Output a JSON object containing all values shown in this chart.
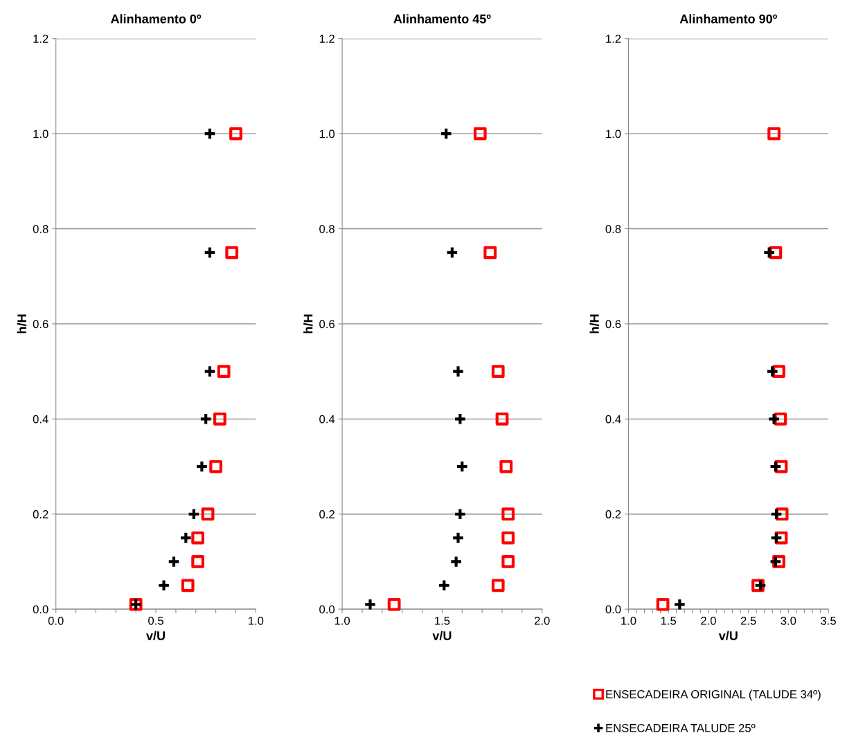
{
  "chart_data": [
    {
      "type": "scatter",
      "title": "Alinhamento 0º",
      "xlabel": "v/U",
      "ylabel": "h/H",
      "xlim": [
        0,
        1
      ],
      "ylim": [
        0,
        1.2
      ],
      "xticks": [
        {
          "value": 0,
          "label": "0.0"
        },
        {
          "value": 0.1,
          "label": null
        },
        {
          "value": 0.2,
          "label": null
        },
        {
          "value": 0.3,
          "label": null
        },
        {
          "value": 0.4,
          "label": null
        },
        {
          "value": 0.5,
          "label": "0.5"
        },
        {
          "value": 0.6,
          "label": null
        },
        {
          "value": 0.7,
          "label": null
        },
        {
          "value": 0.8,
          "label": null
        },
        {
          "value": 0.9,
          "label": null
        },
        {
          "value": 1,
          "label": "1.0"
        }
      ],
      "yticks": [
        {
          "value": 0,
          "label": "0.0"
        },
        {
          "value": 0.2,
          "label": "0.2"
        },
        {
          "value": 0.4,
          "label": "0.4"
        },
        {
          "value": 0.6,
          "label": "0.6"
        },
        {
          "value": 0.8,
          "label": "0.8"
        },
        {
          "value": 1,
          "label": "1.0"
        },
        {
          "value": 1.2,
          "label": "1.2"
        }
      ],
      "grid": "y",
      "legend": "bottom right",
      "series": [
        {
          "name": "ENSECADEIRA ORIGINAL (TALUDE 34º)",
          "color": "#ff0000",
          "marker": "square",
          "x": [
            0.9,
            0.88,
            0.84,
            0.82,
            0.8,
            0.76,
            0.71,
            0.71,
            0.66,
            0.4
          ],
          "values": [
            1.0,
            0.75,
            0.5,
            0.4,
            0.3,
            0.2,
            0.15,
            0.1,
            0.05,
            0.01
          ]
        },
        {
          "name": "ENSECADEIRA TALUDE 25º",
          "color": "#000000",
          "marker": "cross",
          "x": [
            0.77,
            0.77,
            0.77,
            0.75,
            0.73,
            0.69,
            0.65,
            0.59,
            0.54,
            0.4
          ],
          "values": [
            1.0,
            0.75,
            0.5,
            0.4,
            0.3,
            0.2,
            0.15,
            0.1,
            0.05,
            0.01
          ]
        }
      ]
    },
    {
      "type": "scatter",
      "title": "Alinhamento 45º",
      "xlabel": "v/U",
      "ylabel": "h/H",
      "xlim": [
        1,
        2
      ],
      "ylim": [
        0,
        1.2
      ],
      "xticks": [
        {
          "value": 1,
          "label": "1.0"
        },
        {
          "value": 1.1,
          "label": null
        },
        {
          "value": 1.2,
          "label": null
        },
        {
          "value": 1.3,
          "label": null
        },
        {
          "value": 1.4,
          "label": null
        },
        {
          "value": 1.5,
          "label": "1.5"
        },
        {
          "value": 1.6,
          "label": null
        },
        {
          "value": 1.7,
          "label": null
        },
        {
          "value": 1.8,
          "label": null
        },
        {
          "value": 1.9,
          "label": null
        },
        {
          "value": 2,
          "label": "2.0"
        }
      ],
      "yticks": [
        {
          "value": 0,
          "label": "0.0"
        },
        {
          "value": 0.2,
          "label": "0.2"
        },
        {
          "value": 0.4,
          "label": "0.4"
        },
        {
          "value": 0.6,
          "label": "0.6"
        },
        {
          "value": 0.8,
          "label": "0.8"
        },
        {
          "value": 1,
          "label": "1.0"
        },
        {
          "value": 1.2,
          "label": "1.2"
        }
      ],
      "grid": "y",
      "legend": "bottom right",
      "series": [
        {
          "name": "ENSECADEIRA ORIGINAL (TALUDE 34º)",
          "color": "#ff0000",
          "marker": "square",
          "x": [
            1.69,
            1.74,
            1.78,
            1.8,
            1.82,
            1.83,
            1.83,
            1.83,
            1.78,
            1.26
          ],
          "values": [
            1.0,
            0.75,
            0.5,
            0.4,
            0.3,
            0.2,
            0.15,
            0.1,
            0.05,
            0.01
          ]
        },
        {
          "name": "ENSECADEIRA TALUDE 25º",
          "color": "#000000",
          "marker": "cross",
          "x": [
            1.52,
            1.55,
            1.58,
            1.59,
            1.6,
            1.59,
            1.58,
            1.57,
            1.51,
            1.14
          ],
          "values": [
            1.0,
            0.75,
            0.5,
            0.4,
            0.3,
            0.2,
            0.15,
            0.1,
            0.05,
            0.01
          ]
        }
      ]
    },
    {
      "type": "scatter",
      "title": "Alinhamento 90º",
      "xlabel": "v/U",
      "ylabel": "h/H",
      "xlim": [
        1,
        3.5
      ],
      "ylim": [
        0,
        1.2
      ],
      "xticks": [
        {
          "value": 1,
          "label": "1.0"
        },
        {
          "value": 1.1,
          "label": null
        },
        {
          "value": 1.2,
          "label": null
        },
        {
          "value": 1.3,
          "label": null
        },
        {
          "value": 1.4,
          "label": null
        },
        {
          "value": 1.5,
          "label": "1.5"
        },
        {
          "value": 1.6,
          "label": null
        },
        {
          "value": 1.7,
          "label": null
        },
        {
          "value": 1.8,
          "label": null
        },
        {
          "value": 1.9,
          "label": null
        },
        {
          "value": 2,
          "label": "2.0"
        },
        {
          "value": 2.1,
          "label": null
        },
        {
          "value": 2.2,
          "label": null
        },
        {
          "value": 2.3,
          "label": null
        },
        {
          "value": 2.4,
          "label": null
        },
        {
          "value": 2.5,
          "label": "2.5"
        },
        {
          "value": 2.6,
          "label": null
        },
        {
          "value": 2.7,
          "label": null
        },
        {
          "value": 2.8,
          "label": null
        },
        {
          "value": 2.9,
          "label": null
        },
        {
          "value": 3,
          "label": "3.0"
        },
        {
          "value": 3.1,
          "label": null
        },
        {
          "value": 3.2,
          "label": null
        },
        {
          "value": 3.3,
          "label": null
        },
        {
          "value": 3.4,
          "label": null
        },
        {
          "value": 3.5,
          "label": "3.5"
        }
      ],
      "yticks": [
        {
          "value": 0,
          "label": "0.0"
        },
        {
          "value": 0.2,
          "label": "0.2"
        },
        {
          "value": 0.4,
          "label": "0.4"
        },
        {
          "value": 0.6,
          "label": "0.6"
        },
        {
          "value": 0.8,
          "label": "0.8"
        },
        {
          "value": 1,
          "label": "1.0"
        },
        {
          "value": 1.2,
          "label": "1.2"
        }
      ],
      "grid": "y",
      "legend": "bottom right",
      "series": [
        {
          "name": "ENSECADEIRA ORIGINAL (TALUDE 34º)",
          "color": "#ff0000",
          "marker": "square",
          "x": [
            2.82,
            2.84,
            2.88,
            2.9,
            2.91,
            2.92,
            2.91,
            2.88,
            2.62,
            1.43
          ],
          "values": [
            1.0,
            0.75,
            0.5,
            0.4,
            0.3,
            0.2,
            0.15,
            0.1,
            0.05,
            0.01
          ]
        },
        {
          "name": "ENSECADEIRA TALUDE 25º",
          "color": "#000000",
          "marker": "cross",
          "x": [
            2.76,
            2.8,
            2.82,
            2.84,
            2.85,
            2.85,
            2.84,
            2.65,
            1.64
          ],
          "values": [
            0.75,
            0.5,
            0.4,
            0.3,
            0.2,
            0.15,
            0.1,
            0.05,
            0.01
          ]
        }
      ]
    }
  ]
}
